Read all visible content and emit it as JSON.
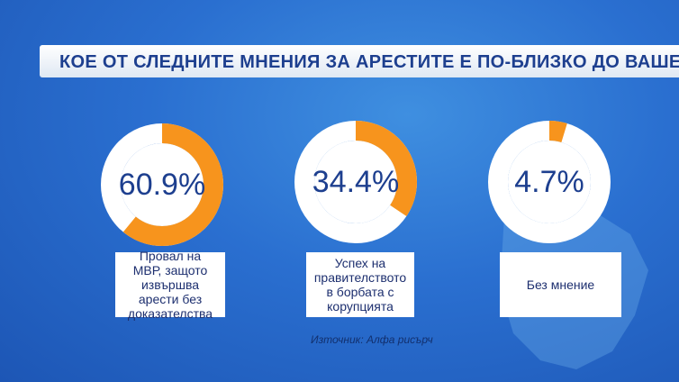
{
  "chart_data": {
    "type": "donut",
    "title": "КОЕ ОТ СЛЕДНИТЕ МНЕНИЯ ЗА АРЕСТИТЕ Е ПО-БЛИЗКО ДО ВАШЕТО",
    "categories": [
      "Провал на МВР, защото извършва арести без доказателства",
      "Успех на правителството в борбата с корупцията",
      "Без мнение"
    ],
    "values": [
      60.9,
      34.4,
      4.7
    ],
    "value_labels": [
      "60.9%",
      "34.4%",
      "4.7%"
    ],
    "color": "#f7941d",
    "source": "Източник: Алфа рисърч"
  }
}
